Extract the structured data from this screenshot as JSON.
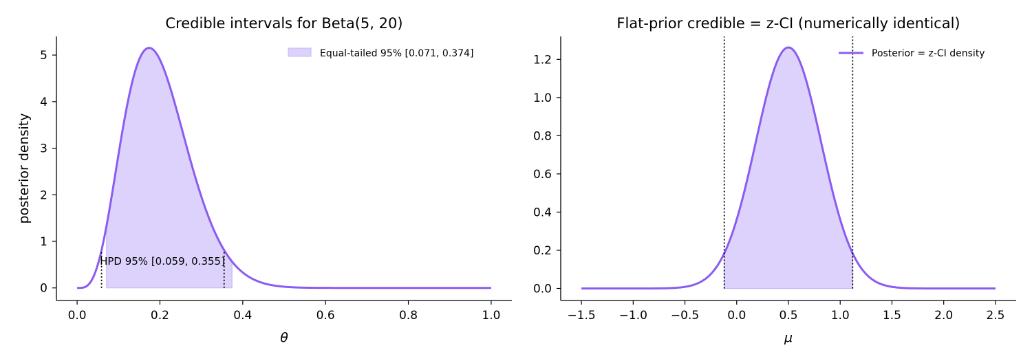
{
  "chart_data": [
    {
      "type": "line",
      "title": "Credible intervals for Beta(5, 20)",
      "xlabel": "θ",
      "ylabel": "posterior density",
      "xlim": [
        -0.05,
        1.05
      ],
      "ylim": [
        -0.27,
        5.4
      ],
      "xticks": [
        0.0,
        0.2,
        0.4,
        0.6,
        0.8,
        1.0
      ],
      "xtick_labels": [
        "0.0",
        "0.2",
        "0.4",
        "0.6",
        "0.8",
        "1.0"
      ],
      "yticks": [
        0,
        1,
        2,
        3,
        4,
        5
      ],
      "ytick_labels": [
        "0",
        "1",
        "2",
        "3",
        "4",
        "5"
      ],
      "distribution": {
        "family": "beta",
        "alpha": 5,
        "beta": 20
      },
      "x_range": [
        0.0,
        1.0
      ],
      "shaded_interval": [
        0.071,
        0.374
      ],
      "vlines": [
        0.059,
        0.355
      ],
      "legend": {
        "label": "Equal-tailed 95% [0.071, 0.374]",
        "placement": "upper right"
      },
      "annotation": {
        "text": "HPD 95% [0.059, 0.355]",
        "x": 0.207,
        "y": 0.5
      },
      "grid": false,
      "line_color": "#8b5cf0",
      "fill_color": "#dcd2fb"
    },
    {
      "type": "line",
      "title": "Flat-prior credible = z-CI (numerically identical)",
      "xlabel": "μ",
      "ylabel": "",
      "xlim": [
        -1.7,
        2.7
      ],
      "ylim": [
        -0.063,
        1.32
      ],
      "xticks": [
        -1.5,
        -1.0,
        -0.5,
        0.0,
        0.5,
        1.0,
        1.5,
        2.0,
        2.5
      ],
      "xtick_labels": [
        "−1.5",
        "−1.0",
        "−0.5",
        "0.0",
        "0.5",
        "1.0",
        "1.5",
        "2.0",
        "2.5"
      ],
      "yticks": [
        0.0,
        0.2,
        0.4,
        0.6,
        0.8,
        1.0,
        1.2
      ],
      "ytick_labels": [
        "0.0",
        "0.2",
        "0.4",
        "0.6",
        "0.8",
        "1.0",
        "1.2"
      ],
      "distribution": {
        "family": "normal",
        "mean": 0.5,
        "sd": 0.316
      },
      "x_range": [
        -1.5,
        2.5
      ],
      "shaded_interval": [
        -0.12,
        1.12
      ],
      "vlines": [
        -0.12,
        1.12
      ],
      "legend": {
        "label": "Posterior = z-CI density",
        "placement": "upper right"
      },
      "grid": false,
      "line_color": "#8b5cf0",
      "fill_color": "#dcd2fb"
    }
  ]
}
